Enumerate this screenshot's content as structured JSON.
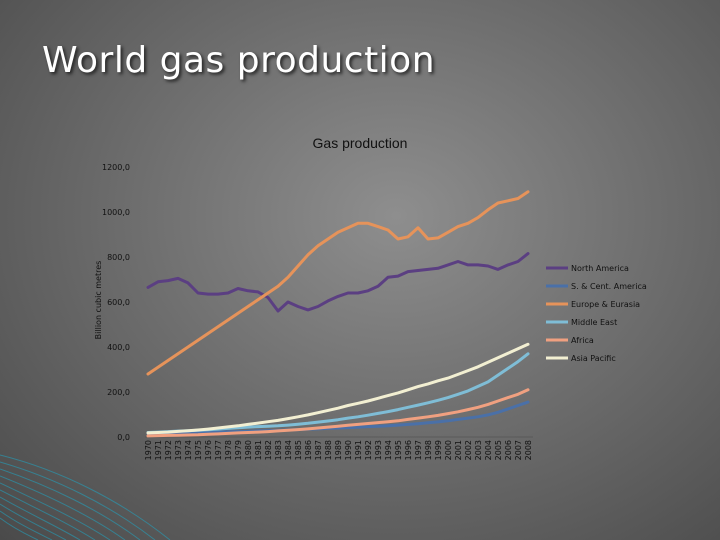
{
  "slide": {
    "title": "World gas production"
  },
  "chart_data": {
    "type": "line",
    "title": "Gas production",
    "ylabel": "Billion cubic metres",
    "xlabel": "",
    "ylim": [
      0,
      1200
    ],
    "yticks": [
      "0,0",
      "200,0",
      "400,0",
      "600,0",
      "800,0",
      "1000,0",
      "1200,0"
    ],
    "ytick_values": [
      0,
      200,
      400,
      600,
      800,
      1000,
      1200
    ],
    "legend_position": "right",
    "grid": false,
    "x": [
      "1970",
      "1971",
      "1972",
      "1973",
      "1974",
      "1975",
      "1976",
      "1977",
      "1978",
      "1979",
      "1980",
      "1981",
      "1982",
      "1983",
      "1984",
      "1985",
      "1986",
      "1987",
      "1988",
      "1989",
      "1990",
      "1991",
      "1992",
      "1993",
      "1994",
      "1995",
      "1996",
      "1997",
      "1998",
      "1999",
      "2000",
      "2001",
      "2002",
      "2003",
      "2004",
      "2005",
      "2006",
      "2007",
      "2008"
    ],
    "series": [
      {
        "name": "North America",
        "color": "#5b3f82",
        "values": [
          665,
          690,
          695,
          705,
          685,
          640,
          635,
          635,
          640,
          660,
          650,
          645,
          620,
          560,
          600,
          580,
          565,
          580,
          605,
          625,
          640,
          640,
          650,
          670,
          710,
          715,
          735,
          740,
          745,
          750,
          765,
          780,
          765,
          765,
          760,
          745,
          765,
          780,
          815
        ]
      },
      {
        "name": "S. & Cent. America",
        "color": "#4a70a8",
        "values": [
          15,
          16,
          17,
          18,
          19,
          20,
          21,
          22,
          23,
          24,
          25,
          27,
          28,
          29,
          31,
          33,
          35,
          36,
          38,
          40,
          42,
          44,
          46,
          48,
          50,
          53,
          56,
          59,
          63,
          67,
          72,
          78,
          84,
          90,
          98,
          110,
          125,
          140,
          155
        ]
      },
      {
        "name": "Europe & Eurasia",
        "color": "#e6935a",
        "values": [
          280,
          310,
          340,
          370,
          400,
          430,
          460,
          490,
          520,
          550,
          580,
          610,
          640,
          670,
          710,
          760,
          810,
          850,
          880,
          910,
          930,
          950,
          950,
          935,
          920,
          880,
          890,
          930,
          880,
          885,
          910,
          935,
          950,
          975,
          1010,
          1040,
          1050,
          1060,
          1090
        ]
      },
      {
        "name": "Middle East",
        "color": "#7fbdd6",
        "values": [
          20,
          22,
          24,
          26,
          28,
          30,
          32,
          35,
          38,
          41,
          44,
          46,
          48,
          50,
          53,
          57,
          61,
          66,
          71,
          77,
          84,
          90,
          97,
          105,
          113,
          122,
          132,
          142,
          152,
          163,
          175,
          190,
          205,
          225,
          245,
          275,
          305,
          335,
          370
        ]
      },
      {
        "name": "Africa",
        "color": "#f0a080",
        "values": [
          5,
          6,
          7,
          8,
          9,
          10,
          12,
          14,
          16,
          18,
          20,
          22,
          24,
          27,
          30,
          33,
          36,
          40,
          44,
          48,
          52,
          56,
          60,
          64,
          68,
          72,
          78,
          84,
          90,
          96,
          104,
          112,
          122,
          132,
          145,
          160,
          175,
          190,
          210
        ]
      },
      {
        "name": "Asia Pacific",
        "color": "#f2efd2",
        "values": [
          18,
          20,
          22,
          25,
          28,
          31,
          35,
          40,
          45,
          50,
          56,
          62,
          68,
          74,
          82,
          90,
          98,
          108,
          118,
          128,
          140,
          150,
          160,
          172,
          184,
          196,
          210,
          224,
          236,
          250,
          262,
          278,
          295,
          312,
          332,
          352,
          372,
          392,
          412
        ]
      }
    ]
  }
}
